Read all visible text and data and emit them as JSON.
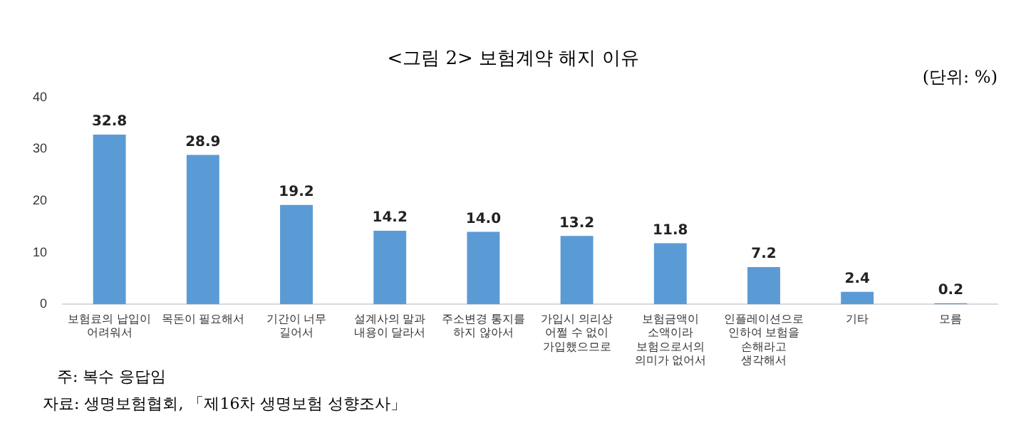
{
  "chart_data": {
    "type": "bar",
    "title": "<그림 2> 보험계약 해지 이유",
    "subtitle": "(단위: %)",
    "categories": [
      "보험료의 납입이\n어려워서",
      "목돈이 필요해서",
      "기간이 너무\n길어서",
      "설계사의 말과\n내용이 달라서",
      "주소변경 통지를\n하지 않아서",
      "가입시 의리상\n어쩔 수 없이\n가입했으므로",
      "보험금액이\n소액이라\n보험으로서의\n의미가 없어서",
      "인플레이션으로\n인하여 보험을\n손해라고\n생각해서",
      "기타",
      "모름"
    ],
    "values": [
      32.8,
      28.9,
      19.2,
      14.2,
      14.0,
      13.2,
      11.8,
      7.2,
      2.4,
      0.2
    ],
    "value_labels": [
      "32.8",
      "28.9",
      "19.2",
      "14.2",
      "14.0",
      "13.2",
      "11.8",
      "7.2",
      "2.4",
      "0.2"
    ],
    "color": "#5b9bd5",
    "ylim": [
      0,
      40
    ],
    "yticks": [
      0,
      10,
      20,
      30,
      40
    ],
    "grid": false,
    "annotations": [
      "주: 복수 응답임",
      "자료: 생명보험협회, 「제16차 생명보험 성향조사」"
    ]
  }
}
